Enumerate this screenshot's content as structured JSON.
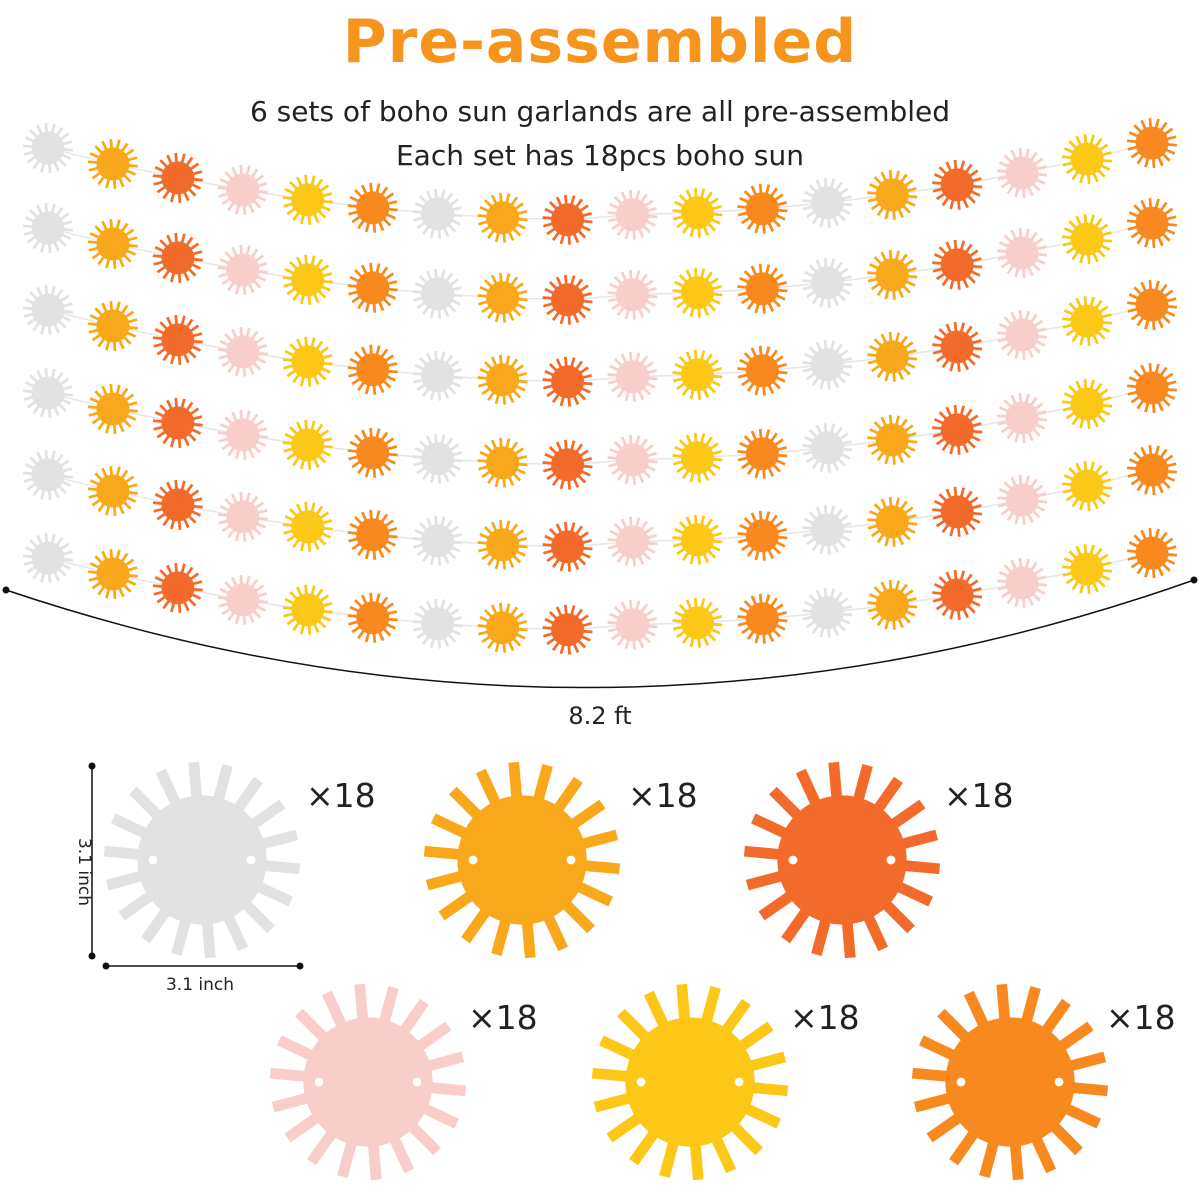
{
  "heading": "Pre-assembled",
  "description": {
    "line1": "6 sets of boho sun garlands are all pre-assembled",
    "line2": "Each set has 18pcs boho sun"
  },
  "dimensions": {
    "garland_length": "8.2 ft",
    "sun_height": "3.1 inch",
    "sun_width": "3.1 inch"
  },
  "colors": {
    "title": "#f7941d",
    "white_sun": "#e2e2e2",
    "amber_sun": "#f9a81b",
    "orange_red_sun": "#f26b2a",
    "pink_sun": "#f8cdca",
    "yellow_sun": "#fcc716",
    "orange_sun": "#f7891f"
  },
  "garland": {
    "rows": 6,
    "suns_per_row": 18,
    "sequence": [
      "white",
      "amber",
      "orange_red",
      "pink",
      "yellow",
      "orange"
    ]
  },
  "suns": [
    {
      "color": "white",
      "quantity": "×18"
    },
    {
      "color": "amber",
      "quantity": "×18"
    },
    {
      "color": "orange_red",
      "quantity": "×18"
    },
    {
      "color": "pink",
      "quantity": "×18"
    },
    {
      "color": "yellow",
      "quantity": "×18"
    },
    {
      "color": "orange",
      "quantity": "×18"
    }
  ]
}
